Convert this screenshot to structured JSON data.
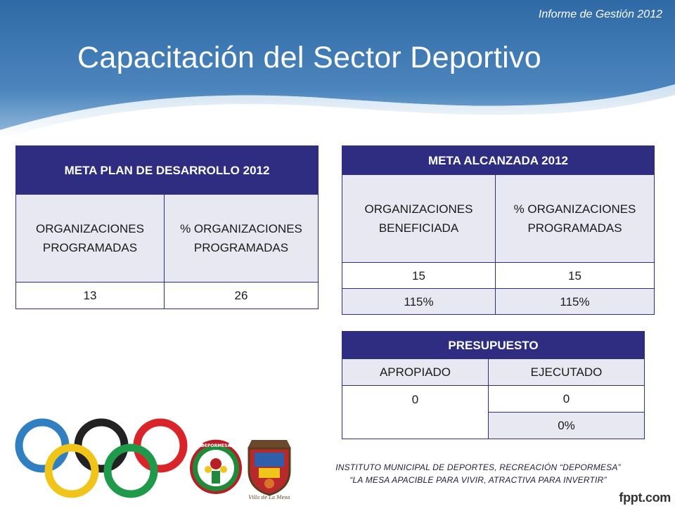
{
  "header": {
    "report_label": "Informe de Gestión 2012",
    "title": "Capacitación del Sector Deportivo"
  },
  "table_plan": {
    "header": "META PLAN DE DESARROLLO 2012",
    "col1_label": "ORGANIZACIONES PROGRAMADAS",
    "col2_label": "% ORGANIZACIONES PROGRAMADAS",
    "col1_value": "13",
    "col2_value": "26"
  },
  "table_alcanzada": {
    "header": "META  ALCANZADA 2012",
    "col1_label": "ORGANIZACIONES BENEFICIADA",
    "col2_label": "% ORGANIZACIONES PROGRAMADAS",
    "row1_col1": "15",
    "row1_col2": "15",
    "row2_col1": "115%",
    "row2_col2": "115%"
  },
  "table_presupuesto": {
    "header": "PRESUPUESTO",
    "col1_label": "APROPIADO",
    "col2_label": "EJECUTADO",
    "row1_col1": "0",
    "row1_col2": "0",
    "row2_col2": "0%"
  },
  "footer": {
    "line1": "INSTITUTO MUNICIPAL DE DEPORTES, RECREACIÓN “DEPORMESA”",
    "line2": "“LA MESA APACIBLE PARA VIVIR, ATRACTIVA PARA INVERTIR”",
    "brand": "fppt.com"
  },
  "logos": {
    "logo1_text": "DEPORMESA",
    "logo2_text": "Villa de La Mesa"
  },
  "colors": {
    "header_blue": "#3a6ea5",
    "table_header": "#2e2d82",
    "table_shade": "#e8e8f2",
    "ring_blue": "#2f7fc1",
    "ring_yellow": "#f0c419",
    "ring_black": "#222222",
    "ring_green": "#1f9a4b",
    "ring_red": "#d9252a"
  }
}
